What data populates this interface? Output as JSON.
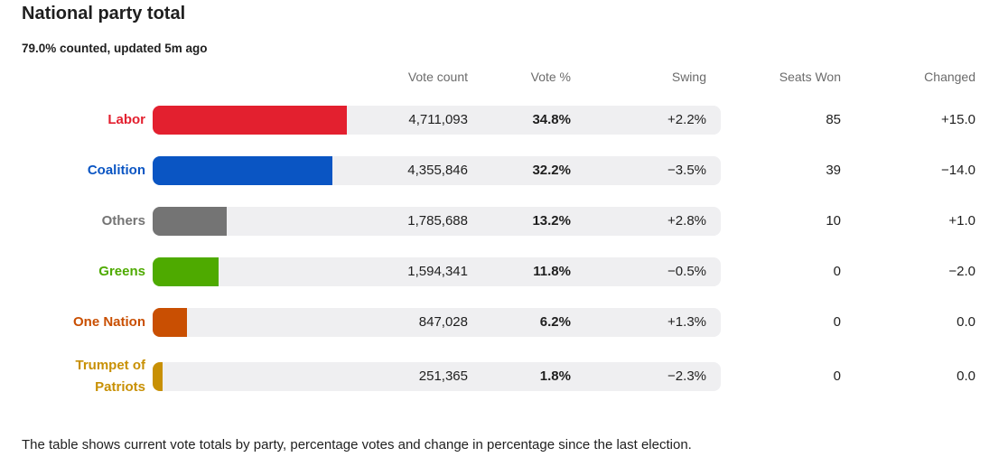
{
  "title": "National party total",
  "subtitle": "79.0% counted, updated 5m ago",
  "columns": {
    "votes": "Vote count",
    "pct": "Vote %",
    "swing": "Swing",
    "seats": "Seats Won",
    "changed": "Changed"
  },
  "rows": [
    {
      "party": "Labor",
      "color": "#e3202f",
      "share": 0.348,
      "votes": "4,711,093",
      "pct": "34.8%",
      "swing": "+2.2%",
      "seats": "85",
      "changed": "+15.0"
    },
    {
      "party": "Coalition",
      "color": "#0a55c3",
      "share": 0.322,
      "votes": "4,355,846",
      "pct": "32.2%",
      "swing": "−3.5%",
      "seats": "39",
      "changed": "−14.0"
    },
    {
      "party": "Others",
      "color": "#747474",
      "share": 0.132,
      "votes": "1,785,688",
      "pct": "13.2%",
      "swing": "+2.8%",
      "seats": "10",
      "changed": "+1.0"
    },
    {
      "party": "Greens",
      "color": "#4eaa00",
      "share": 0.118,
      "votes": "1,594,341",
      "pct": "11.8%",
      "swing": "−0.5%",
      "seats": "0",
      "changed": "−2.0"
    },
    {
      "party": "One Nation",
      "color": "#c94f02",
      "share": 0.062,
      "votes": "847,028",
      "pct": "6.2%",
      "swing": "+1.3%",
      "seats": "0",
      "changed": "0.0"
    },
    {
      "party": "Trumpet of Patriots",
      "color": "#c89004",
      "share": 0.018,
      "votes": "251,365",
      "pct": "1.8%",
      "swing": "−2.3%",
      "seats": "0",
      "changed": "0.0"
    }
  ],
  "footer": "The table shows current vote totals by party, percentage votes and change in percentage since the last election."
}
